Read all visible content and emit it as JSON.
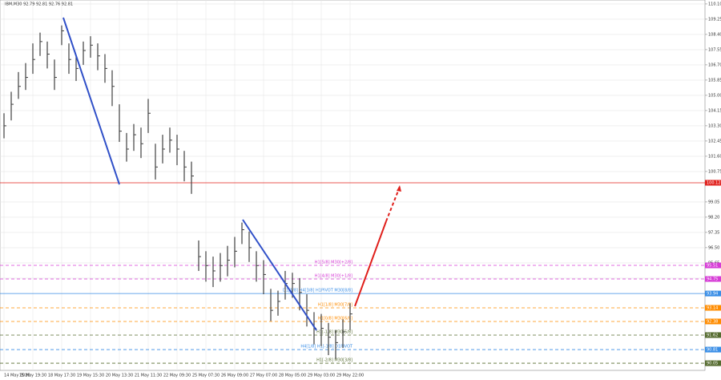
{
  "chart_data": {
    "type": "ohlc",
    "title": "IBM,M30  92.79 92.81 92.76 92.81",
    "categories": [
      "14 May 2026",
      null,
      null,
      null,
      "15 May 19:30",
      null,
      null,
      null,
      "18 May 17:30",
      null,
      null,
      null,
      "19 May 15:30",
      null,
      null,
      null,
      "20 May 13:30",
      null,
      null,
      null,
      "21 May 11:30",
      null,
      null,
      null,
      "22 May 09:30",
      null,
      null,
      null,
      "25 May 07:30",
      null,
      null,
      null,
      "26 May 09:00",
      null,
      null,
      null,
      "27 May 07:00",
      null,
      null,
      null,
      "28 May 05:00",
      null,
      null,
      null,
      "29 May 03:00",
      null,
      null,
      null,
      "29 May 22:00"
    ],
    "high": [
      104.0,
      105.2,
      106.3,
      106.8,
      107.9,
      108.5,
      108.0,
      107.0,
      108.9,
      107.9,
      107.2,
      108.0,
      108.3,
      107.9,
      107.3,
      106.4,
      104.5,
      102.9,
      103.4,
      103.2,
      104.8,
      102.3,
      102.8,
      103.2,
      102.8,
      101.9,
      101.3,
      96.9,
      96.3,
      96.0,
      96.2,
      96.6,
      97.1,
      97.9,
      97.4,
      96.3,
      95.8,
      94.2,
      94.1,
      95.2,
      95.1,
      94.8,
      93.9,
      92.9,
      92.8,
      92.3,
      91.9,
      92.5,
      93.4
    ],
    "low": [
      102.6,
      103.6,
      104.8,
      105.3,
      106.2,
      107.2,
      106.5,
      105.3,
      107.8,
      106.2,
      105.8,
      106.7,
      107.1,
      106.4,
      105.7,
      104.4,
      102.4,
      101.3,
      101.9,
      101.5,
      102.9,
      100.3,
      101.2,
      101.8,
      101.1,
      100.2,
      99.5,
      95.2,
      94.6,
      94.3,
      94.6,
      94.9,
      95.4,
      96.7,
      95.7,
      94.6,
      93.9,
      92.4,
      92.7,
      93.6,
      93.7,
      93.0,
      92.1,
      91.1,
      91.0,
      90.5,
      90.3,
      90.9,
      91.9
    ],
    "close": [
      103.3,
      104.5,
      105.5,
      106.0,
      107.0,
      108.0,
      107.3,
      106.0,
      108.6,
      107.0,
      106.5,
      107.5,
      107.8,
      107.2,
      106.5,
      105.5,
      103.0,
      102.0,
      102.8,
      102.3,
      104.0,
      101.0,
      102.0,
      102.5,
      102.0,
      101.0,
      100.5,
      96.0,
      95.5,
      95.2,
      95.5,
      95.8,
      96.3,
      97.5,
      96.5,
      95.5,
      95.0,
      93.0,
      93.5,
      94.5,
      94.5,
      94.0,
      93.0,
      92.0,
      92.0,
      91.5,
      91.2,
      91.8,
      92.8
    ],
    "color": "#404040",
    "ylim": [
      89.65,
      110.32
    ],
    "yticks": [
      {
        "value": 110.1,
        "label": "110.10"
      },
      {
        "value": 109.25,
        "label": "109.25"
      },
      {
        "value": 108.4,
        "label": "108.40"
      },
      {
        "value": 107.55,
        "label": "107.55"
      },
      {
        "value": 106.7,
        "label": "106.70"
      },
      {
        "value": 105.85,
        "label": "105.85"
      },
      {
        "value": 105,
        "label": "105.00"
      },
      {
        "value": 104.15,
        "label": "104.15"
      },
      {
        "value": 103.3,
        "label": "103.30"
      },
      {
        "value": 102.45,
        "label": "102.45"
      },
      {
        "value": 101.6,
        "label": "101.60"
      },
      {
        "value": 100.75,
        "label": "100.75"
      },
      {
        "value": 99.05,
        "label": "99.05"
      },
      {
        "value": 98.2,
        "label": "98.20"
      },
      {
        "value": 97.35,
        "label": "97.35"
      },
      {
        "value": 96.5,
        "label": "96.50"
      },
      {
        "value": 95.65,
        "label": "95.65"
      },
      {
        "value": 94.8,
        "label": "94.80"
      }
    ],
    "grid": true,
    "levels": [
      {
        "price": 100.12,
        "color": "#e0201c",
        "style": "solid"
      },
      {
        "price": 95.51,
        "label": "H1[5/8] M30[+2/8]",
        "color": "#d63cd6",
        "style": "dashed"
      },
      {
        "price": 94.75,
        "label": "H1[4/8] M30[+1/8]",
        "color": "#d63cd6",
        "style": "dashed"
      },
      {
        "price": 93.94,
        "label": "D1[1/8] H4[3/8] H1PIVOT M30[8/8]",
        "color": "#3a8ee6",
        "style": "solid"
      },
      {
        "price": 93.14,
        "label": "H1[1/8] M30[7/8]",
        "color": "#ff8c00",
        "style": "dashed"
      },
      {
        "price": 92.38,
        "label": "H1[0/8] M30[6/8]",
        "color": "#ff8c00",
        "style": "dashed"
      },
      {
        "price": 91.62,
        "label": "H1[-1/8] M30[5/8]",
        "color": "#556b2f",
        "style": "dashed"
      },
      {
        "price": 90.81,
        "label": "H4[1/8] H1[-1/8] D1PIVOT",
        "color": "#3a8ee6",
        "style": "dashed"
      },
      {
        "price": 90.05,
        "label": "H1[-2/8] M30[3/8]",
        "color": "#556b2f",
        "style": "dashed"
      }
    ]
  }
}
